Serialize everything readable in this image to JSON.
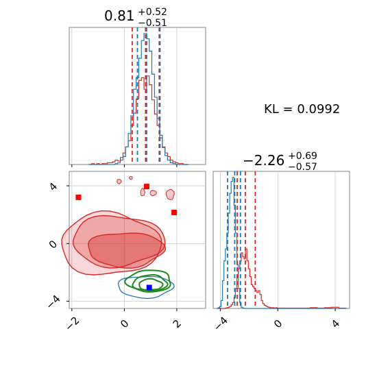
{
  "chart_data": [
    {
      "type": "histogram",
      "panel": "top-left",
      "title": {
        "main": "0.81",
        "sup": "+0.52",
        "sub": "−0.51"
      },
      "xlim": [
        -2.1,
        3.1
      ],
      "xticks": [
        -2,
        0,
        2
      ],
      "colors": {
        "red": "#d62728",
        "blue": "#1f77b4"
      },
      "quantile_lines": {
        "red": [
          0.3,
          0.81,
          1.33
        ],
        "blue": [
          0.5,
          0.85,
          1.36
        ]
      },
      "bins_x": [
        -1.3,
        -1.2,
        -1.1,
        -1.0,
        -0.9,
        -0.8,
        -0.7,
        -0.6,
        -0.5,
        -0.4,
        -0.3,
        -0.2,
        -0.1,
        0.0,
        0.1,
        0.2,
        0.3,
        0.4,
        0.5,
        0.6,
        0.7,
        0.8,
        0.9,
        1.0,
        1.1,
        1.2,
        1.3,
        1.4,
        1.5,
        1.6,
        1.7,
        1.8,
        1.9,
        2.0,
        2.1,
        2.2,
        2.3,
        2.4
      ],
      "series": [
        {
          "color": "red",
          "values": [
            0,
            1,
            0,
            1,
            0,
            1,
            1,
            2,
            2,
            3,
            5,
            4,
            8,
            13,
            20,
            27,
            44,
            58,
            74,
            95,
            98,
            85,
            100,
            90,
            73,
            57,
            44,
            30,
            20,
            13,
            9,
            5,
            3,
            2,
            1,
            1,
            0,
            0
          ]
        },
        {
          "color": "blue",
          "values": [
            0,
            0,
            0,
            0,
            0,
            0,
            0,
            0,
            0,
            0,
            1,
            2,
            5,
            9,
            20,
            35,
            55,
            85,
            98,
            120,
            140,
            148,
            142,
            128,
            102,
            76,
            52,
            33,
            19,
            10,
            5,
            2,
            1,
            0,
            0,
            0,
            0,
            0
          ]
        }
      ]
    },
    {
      "type": "contour",
      "panel": "bottom-left",
      "xlim": [
        -2.1,
        3.1
      ],
      "ylim": [
        -4.5,
        5.0
      ],
      "xticks": [
        -2,
        0,
        2
      ],
      "yticks": [
        -4,
        0,
        4
      ],
      "red_markers": [
        [
          -1.75,
          3.2
        ],
        [
          0.85,
          3.95
        ],
        [
          1.9,
          2.15
        ]
      ],
      "blue_marker": [
        0.95,
        -3.05
      ],
      "contours": {
        "red": [
          [
            -0.55,
            -0.05,
            1.9,
            2.15
          ],
          [
            -0.25,
            0.18,
            1.75,
            1.75
          ],
          [
            0.05,
            -0.42,
            1.45,
            1.2
          ]
        ],
        "green": [
          [
            0.95,
            -2.6,
            0.85,
            0.75
          ],
          [
            0.98,
            -2.75,
            0.65,
            0.55
          ],
          [
            1.0,
            -2.85,
            0.45,
            0.38
          ]
        ],
        "blue": [
          [
            0.8,
            -3.0,
            1.05,
            0.75
          ]
        ]
      }
    },
    {
      "type": "histogram",
      "panel": "bottom-right",
      "title": {
        "main": "−2.26",
        "sup": "+0.69",
        "sub": "−0.57"
      },
      "xlim": [
        -4.5,
        5.0
      ],
      "xticks": [
        -4,
        0,
        4
      ],
      "quantile_lines": {
        "red": [
          -2.83,
          -2.26,
          -1.57
        ],
        "blue": [
          -3.5,
          -3.0,
          -2.6
        ]
      },
      "bins_x": [
        -4.2,
        -4.1,
        -4.0,
        -3.9,
        -3.8,
        -3.7,
        -3.6,
        -3.5,
        -3.4,
        -3.3,
        -3.2,
        -3.1,
        -3.0,
        -2.9,
        -2.8,
        -2.7,
        -2.6,
        -2.5,
        -2.4,
        -2.3,
        -2.2,
        -2.1,
        -2.0,
        -1.9,
        -1.8,
        -1.7,
        -1.6,
        -1.5,
        -1.4,
        -1.3,
        -1.2,
        -1.1,
        -1.0,
        -0.9,
        -0.8,
        -0.7,
        -0.6,
        -0.5,
        -0.4,
        -0.3,
        -0.2,
        -0.1,
        0.0,
        0.5,
        1.0,
        1.5,
        2.0,
        2.5,
        3.0,
        3.5,
        4.0,
        4.5
      ],
      "series": [
        {
          "color": "red",
          "values": [
            0,
            0,
            0,
            0,
            0,
            0,
            1,
            2,
            3,
            5,
            9,
            15,
            28,
            50,
            80,
            100,
            120,
            140,
            130,
            125,
            150,
            120,
            100,
            80,
            60,
            55,
            50,
            45,
            40,
            45,
            35,
            20,
            12,
            8,
            6,
            4,
            3,
            2,
            2,
            2,
            1,
            2,
            1,
            1,
            1,
            1,
            1,
            2,
            1,
            2,
            3,
            1
          ]
        },
        {
          "color": "blue",
          "values": [
            0,
            2,
            5,
            20,
            70,
            120,
            150,
            190,
            240,
            290,
            320,
            330,
            260,
            190,
            110,
            50,
            15,
            3,
            1,
            0,
            0,
            0,
            0,
            0,
            0,
            0,
            0,
            0,
            0,
            0,
            0,
            0,
            0,
            0,
            0,
            0,
            0,
            0,
            0,
            0,
            0,
            0,
            0,
            0,
            0,
            0,
            0,
            0,
            0,
            0,
            0,
            0
          ]
        }
      ]
    }
  ],
  "annotation": {
    "kl_text": "KL = 0.0992"
  }
}
